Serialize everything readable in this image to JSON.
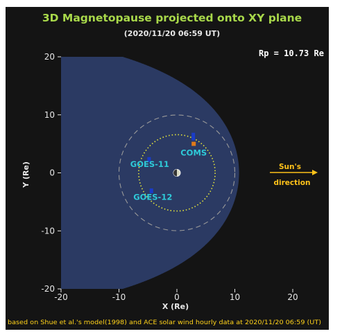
{
  "chart_data": {
    "type": "scatter",
    "title": "3D Magnetopause projected onto XY plane",
    "subtitle": "(2020/11/20 06:59 UT)",
    "rp_label": "Rp = 10.73 Re",
    "xlabel": "X (Re)",
    "ylabel": "Y (Re)",
    "xlim": [
      -20,
      20
    ],
    "ylim": [
      -20,
      20
    ],
    "x_ticks": [
      "-20",
      "-10",
      "0",
      "10",
      "20"
    ],
    "y_ticks": [
      "20",
      "10",
      "0",
      "-10",
      "-20"
    ],
    "magnetopause": {
      "standoff_re": 10.73,
      "flaring_alpha": 0.58,
      "fill_color": "#2b3a63"
    },
    "geo_orbit_radius_re": 6.6,
    "reference_circle_radius_re": 10,
    "satellites": [
      {
        "name": "COMS",
        "x": 2.9,
        "y": 5.0,
        "color": "#e07a1a"
      },
      {
        "name": "GOES-11",
        "x": -4.8,
        "y": 2.3,
        "color": "#1a3cc8"
      },
      {
        "name": "GOES-12",
        "x": -4.4,
        "y": -3.1,
        "color": "#1a3cc8"
      }
    ],
    "sun_direction_label": [
      "Sun's",
      "direction"
    ],
    "footnote": "based on Shue et al.'s model(1998) and ACE solar wind hourly data at 2020/11/20 06:59 (UT)",
    "colors": {
      "background": "#141414",
      "title": "#a8d84a",
      "satellite_label": "#2ec9d8",
      "sun": "#ffc21a",
      "orbit": "#e8e83a",
      "reference_circle": "#9a9a9a"
    }
  }
}
